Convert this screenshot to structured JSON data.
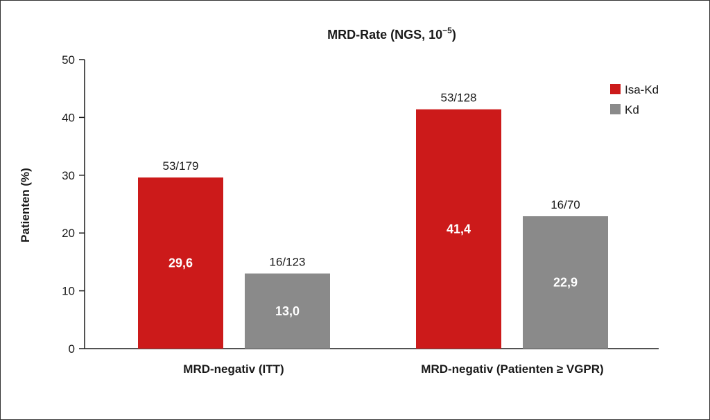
{
  "chart_data": {
    "type": "bar",
    "title_main": "MRD-Rate (NGS, 10",
    "title_sup": "−5",
    "title_end": ")",
    "ylabel": "Patienten (%)",
    "ylim": [
      0,
      50
    ],
    "yticks": [
      "0",
      "10",
      "20",
      "30",
      "40",
      "50"
    ],
    "categories": [
      "MRD-negativ (ITT)",
      "MRD-negativ (Patienten ≥ VGPR)"
    ],
    "series": [
      {
        "name": "Isa-Kd",
        "color": "#cc1a1a",
        "values": [
          29.6,
          41.4
        ],
        "value_labels": [
          "29,6",
          "41,4"
        ],
        "top_labels": [
          "53/179",
          "53/128"
        ]
      },
      {
        "name": "Kd",
        "color": "#8a8a8a",
        "values": [
          13.0,
          22.9
        ],
        "value_labels": [
          "13,0",
          "22,9"
        ],
        "top_labels": [
          "16/123",
          "16/70"
        ]
      }
    ],
    "legend_position": "top-right",
    "grid": false
  }
}
